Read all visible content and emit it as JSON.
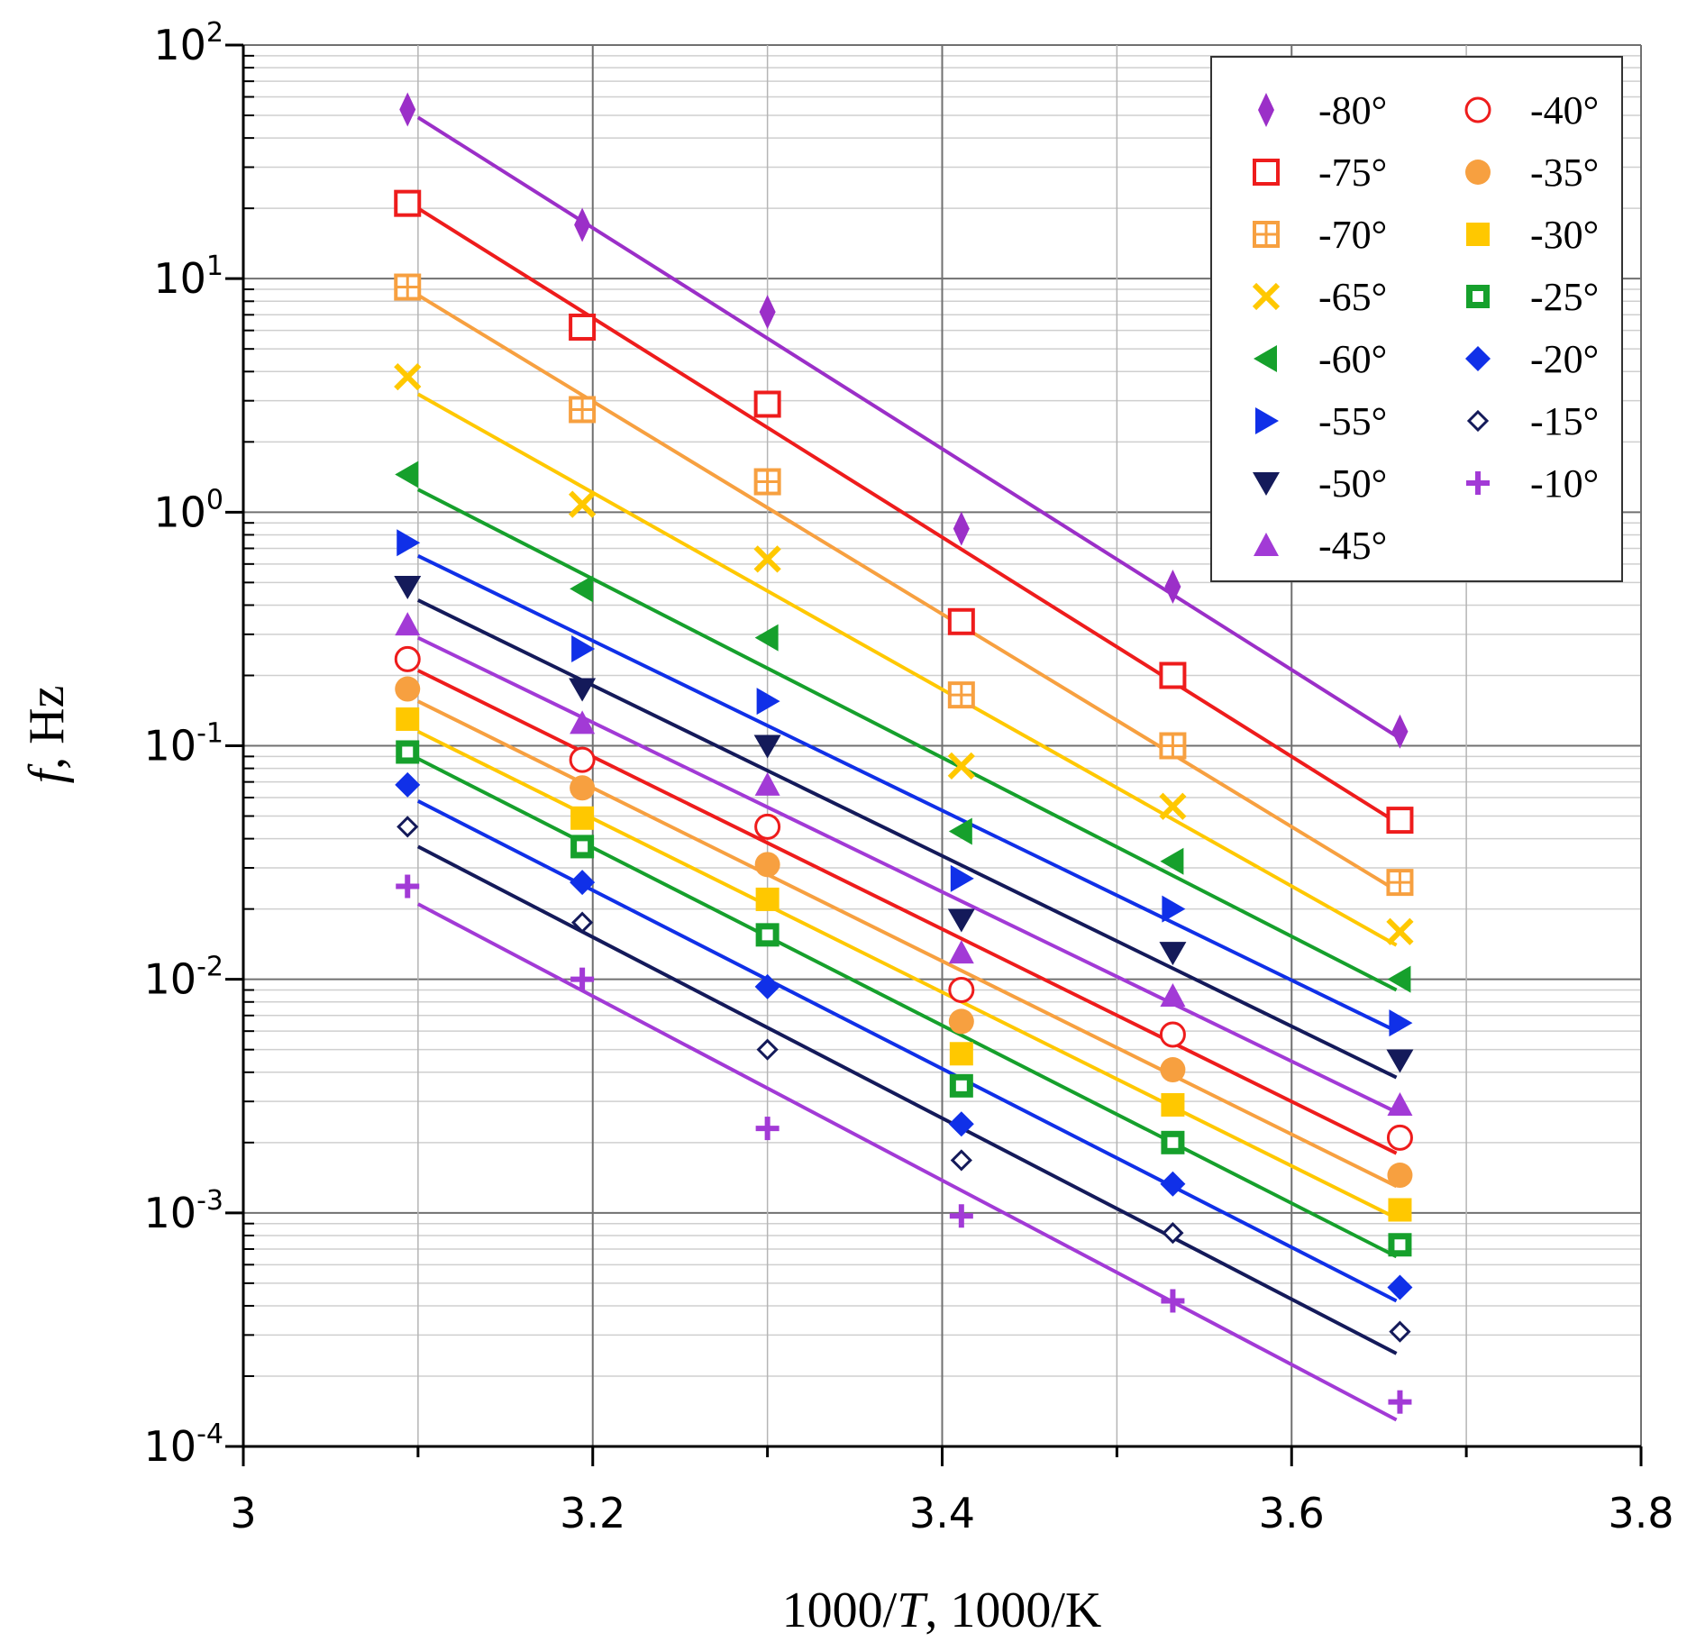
{
  "chart_data": {
    "type": "scatter",
    "x_scale": "linear",
    "y_scale": "log",
    "xlim": [
      3,
      3.8
    ],
    "ylim": [
      0.0001,
      100
    ],
    "x_ticks": [
      3,
      3.2,
      3.4,
      3.6,
      3.8
    ],
    "x_tick_labels": [
      "3",
      "3.2",
      "3.4",
      "3.6",
      "3.8"
    ],
    "y_ticks": [
      {
        "value": 0.0001,
        "base": "10",
        "exp": "-4"
      },
      {
        "value": 0.001,
        "base": "10",
        "exp": "-3"
      },
      {
        "value": 0.01,
        "base": "10",
        "exp": "-2"
      },
      {
        "value": 0.1,
        "base": "10",
        "exp": "-1"
      },
      {
        "value": 1,
        "base": "10",
        "exp": "0"
      },
      {
        "value": 10,
        "base": "10",
        "exp": "1"
      },
      {
        "value": 100,
        "base": "10",
        "exp": "2"
      }
    ],
    "xlabel": {
      "pre": "1000/",
      "italic": "T",
      "post": ", 1000/K"
    },
    "ylabel": {
      "italic": "f",
      "post": ", Hz"
    },
    "grid": true,
    "legend_position": "top-right",
    "x": [
      3.094,
      3.194,
      3.3,
      3.411,
      3.532,
      3.662
    ],
    "series": [
      {
        "name": "-80°",
        "marker": "thin-diamond",
        "color": "#9b2fc8",
        "values": [
          53,
          17,
          7.2,
          0.85,
          0.48,
          0.115
        ],
        "fit": [
          49,
          0.11
        ]
      },
      {
        "name": "-75°",
        "marker": "open-square",
        "color": "#ee1c1c",
        "values": [
          21,
          6.2,
          2.9,
          0.34,
          0.2,
          0.048
        ],
        "fit": [
          20,
          0.047
        ]
      },
      {
        "name": "-70°",
        "marker": "crossed-square",
        "color": "#f7a040",
        "values": [
          9.2,
          2.75,
          1.35,
          0.165,
          0.1,
          0.026
        ],
        "fit": [
          8.5,
          0.024
        ]
      },
      {
        "name": "-65°",
        "marker": "x",
        "color": "#ffc800",
        "values": [
          3.8,
          1.08,
          0.63,
          0.082,
          0.055,
          0.016
        ],
        "fit": [
          3.2,
          0.014
        ]
      },
      {
        "name": "-60°",
        "marker": "triangle-left",
        "color": "#16a02c",
        "values": [
          1.45,
          0.47,
          0.29,
          0.043,
          0.032,
          0.01
        ],
        "fit": [
          1.25,
          0.009
        ]
      },
      {
        "name": "-55°",
        "marker": "triangle-right",
        "color": "#1030e8",
        "values": [
          0.74,
          0.26,
          0.155,
          0.027,
          0.02,
          0.0065
        ],
        "fit": [
          0.65,
          0.006
        ]
      },
      {
        "name": "-50°",
        "marker": "triangle-down",
        "color": "#141a5a",
        "values": [
          0.48,
          0.175,
          0.1,
          0.018,
          0.013,
          0.0045
        ],
        "fit": [
          0.42,
          0.0038
        ]
      },
      {
        "name": "-45°",
        "marker": "triangle-up",
        "color": "#a23ad6",
        "values": [
          0.33,
          0.125,
          0.068,
          0.013,
          0.0085,
          0.0029
        ],
        "fit": [
          0.29,
          0.0027
        ]
      },
      {
        "name": "-40°",
        "marker": "open-circle",
        "color": "#ee1c1c",
        "values": [
          0.235,
          0.087,
          0.045,
          0.009,
          0.0058,
          0.0021
        ],
        "fit": [
          0.21,
          0.0018
        ]
      },
      {
        "name": "-35°",
        "marker": "filled-circle",
        "color": "#f7a040",
        "values": [
          0.175,
          0.066,
          0.031,
          0.0066,
          0.0041,
          0.00145
        ],
        "fit": [
          0.155,
          0.0013
        ]
      },
      {
        "name": "-30°",
        "marker": "filled-square",
        "color": "#ffc800",
        "values": [
          0.13,
          0.049,
          0.022,
          0.0048,
          0.0029,
          0.00103
        ],
        "fit": [
          0.115,
          0.00095
        ]
      },
      {
        "name": "-25°",
        "marker": "square-in-square",
        "color": "#16a02c",
        "values": [
          0.094,
          0.037,
          0.0155,
          0.0035,
          0.002,
          0.00073
        ],
        "fit": [
          0.088,
          0.00065
        ]
      },
      {
        "name": "-20°",
        "marker": "filled-diamond",
        "color": "#1030e8",
        "values": [
          0.068,
          0.026,
          0.0093,
          0.0024,
          0.00133,
          0.00048
        ],
        "fit": [
          0.058,
          0.00042
        ]
      },
      {
        "name": "-15°",
        "marker": "open-diamond",
        "color": "#141a5a",
        "values": [
          0.045,
          0.0175,
          0.005,
          0.00168,
          0.00082,
          0.00031
        ],
        "fit": [
          0.037,
          0.00025
        ]
      },
      {
        "name": "-10°",
        "marker": "plus",
        "color": "#a23ad6",
        "values": [
          0.025,
          0.01,
          0.0023,
          0.00097,
          0.00042,
          0.000155
        ],
        "fit": [
          0.021,
          0.00013
        ]
      }
    ]
  }
}
